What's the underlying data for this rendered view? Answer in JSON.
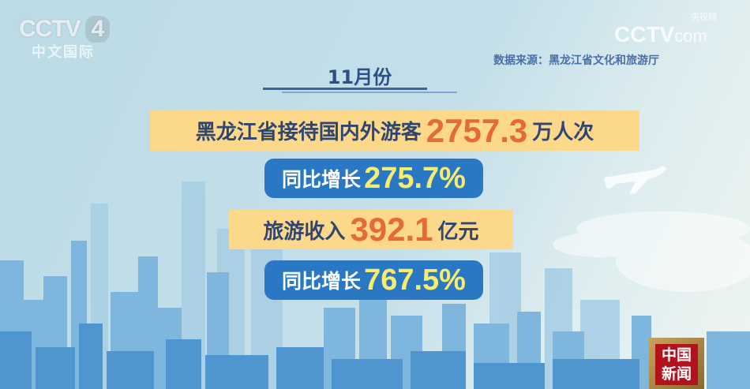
{
  "logos": {
    "channel": {
      "brand": "CCTV",
      "number": "4",
      "subtitle": "中文国际"
    },
    "website": {
      "brand": "CCTV",
      "suffix": "com",
      "name": "央视网"
    },
    "program": {
      "name": "中国新闻"
    }
  },
  "source": "数据来源：黑龙江省文化和旅游厅",
  "title": "11月份",
  "stats": [
    {
      "label": "黑龙江省接待国内外游客",
      "value": "2757.3",
      "unit": "万人次"
    },
    {
      "label": "同比增长",
      "value": "275.7%"
    },
    {
      "label": "旅游收入",
      "value": "392.1",
      "unit": "亿元"
    },
    {
      "label": "同比增长",
      "value": "767.5%"
    }
  ],
  "colors": {
    "highlight_band": "#fbd88a",
    "badge_blue": "#2a78c3",
    "orange_number": "#e46a3b",
    "yellow_number": "#f6ec6e",
    "label_dark": "#2f4572"
  },
  "icons": [
    "airplane-icon",
    "city-skyline-illustration"
  ]
}
